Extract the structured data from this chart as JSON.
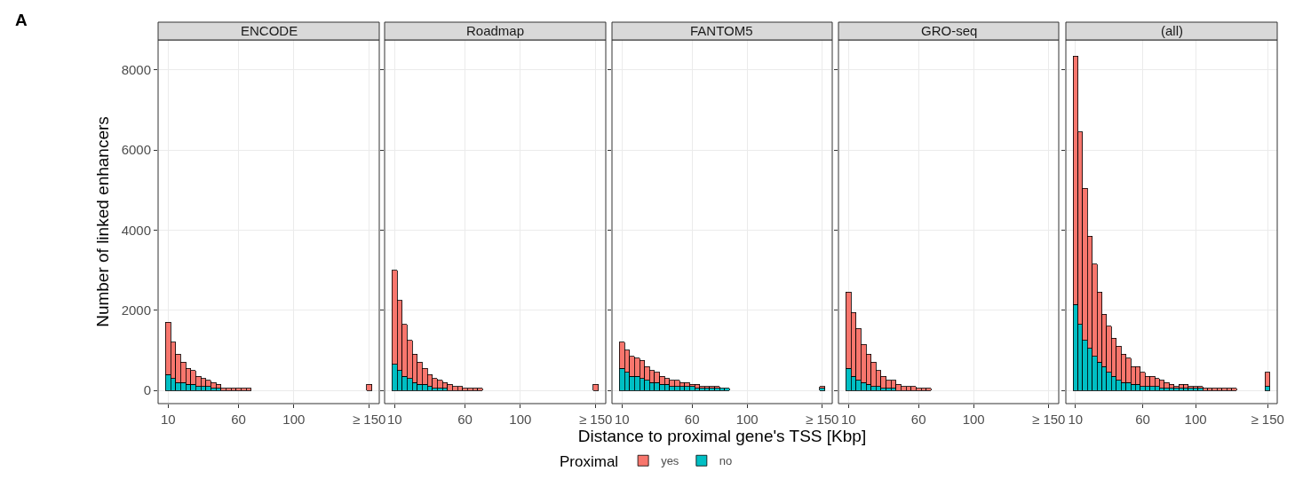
{
  "chart_data": [
    {
      "type": "bar",
      "title": "ENCODE",
      "ylabel": "Number of linked enhancers",
      "annotations": [
        "A"
      ],
      "legend": "bottom",
      "legend_title": "Proximal",
      "stacked": true,
      "grid": true,
      "categories": [
        "10",
        null,
        null,
        null,
        null,
        null,
        null,
        null,
        null,
        null,
        null,
        null,
        null,
        null,
        "60",
        null,
        null,
        null,
        null,
        null,
        null,
        null,
        null,
        null,
        null,
        "100",
        null,
        null,
        null,
        null,
        null,
        null,
        null,
        null,
        null,
        null,
        null,
        null,
        null,
        null,
        "≥ 150"
      ],
      "series": [
        {
          "name": "no",
          "color": "#00bfc4",
          "values": [
            400,
            300,
            200,
            200,
            150,
            150,
            100,
            100,
            100,
            50,
            50,
            null,
            null,
            null,
            null,
            null,
            null,
            null,
            null,
            null,
            null,
            null,
            null,
            null,
            null,
            null,
            null,
            null,
            null,
            null,
            null,
            null,
            null,
            null,
            null,
            null,
            null,
            null,
            null,
            null,
            null
          ]
        },
        {
          "name": "yes",
          "color": "#f8766d",
          "values": [
            1300,
            900,
            700,
            500,
            400,
            350,
            250,
            200,
            150,
            150,
            100,
            50,
            50,
            50,
            50,
            50,
            50,
            null,
            null,
            null,
            null,
            null,
            null,
            null,
            null,
            null,
            null,
            null,
            null,
            null,
            null,
            null,
            null,
            null,
            null,
            null,
            null,
            null,
            null,
            null,
            150
          ]
        }
      ],
      "ylim": [
        -330,
        8750
      ],
      "yticks": [
        0,
        2000,
        4000,
        6000,
        8000
      ]
    },
    {
      "type": "bar",
      "title": "Roadmap",
      "stacked": true,
      "grid": true,
      "tick_labels": "x",
      "categories": [
        "10",
        null,
        null,
        null,
        null,
        null,
        null,
        null,
        null,
        null,
        null,
        null,
        null,
        null,
        "60",
        null,
        null,
        null,
        null,
        null,
        null,
        null,
        null,
        null,
        null,
        "100",
        null,
        null,
        null,
        null,
        null,
        null,
        null,
        null,
        null,
        null,
        null,
        null,
        null,
        null,
        "≥ 150"
      ],
      "series": [
        {
          "color": "#00bfc4",
          "values": [
            650,
            500,
            350,
            300,
            200,
            150,
            150,
            100,
            50,
            50,
            50,
            null,
            null,
            null,
            null,
            null,
            null,
            null,
            null,
            null,
            null,
            null,
            null,
            null,
            null,
            null,
            null,
            null,
            null,
            null,
            null,
            null,
            null,
            null,
            null,
            null,
            null,
            null,
            null,
            null,
            null
          ]
        },
        {
          "color": "#f8766d",
          "values": [
            2350,
            1750,
            1300,
            950,
            700,
            550,
            400,
            300,
            250,
            200,
            150,
            150,
            100,
            100,
            50,
            50,
            50,
            50,
            null,
            null,
            null,
            null,
            null,
            null,
            null,
            null,
            null,
            null,
            null,
            null,
            null,
            null,
            null,
            null,
            null,
            null,
            null,
            null,
            null,
            null,
            150
          ]
        }
      ],
      "ylim": [
        -330,
        8750
      ],
      "yticks": [
        0,
        2000,
        4000,
        6000,
        8000
      ]
    },
    {
      "type": "bar",
      "title": "FANTOM5",
      "xlabel": "Distance to proximal gene's TSS [Kbp]",
      "stacked": true,
      "grid": true,
      "tick_labels": "x",
      "categories": [
        "10",
        null,
        null,
        null,
        null,
        null,
        null,
        null,
        null,
        null,
        null,
        null,
        null,
        null,
        "60",
        null,
        null,
        null,
        null,
        null,
        null,
        null,
        null,
        null,
        null,
        "100",
        null,
        null,
        null,
        null,
        null,
        null,
        null,
        null,
        null,
        null,
        null,
        null,
        null,
        null,
        "≥ 150"
      ],
      "series": [
        {
          "color": "#00bfc4",
          "values": [
            550,
            450,
            350,
            350,
            300,
            250,
            200,
            200,
            150,
            150,
            100,
            100,
            100,
            100,
            100,
            50,
            50,
            50,
            50,
            50,
            50,
            50,
            null,
            null,
            null,
            null,
            null,
            null,
            null,
            null,
            null,
            null,
            null,
            null,
            null,
            null,
            null,
            null,
            null,
            null,
            50
          ]
        },
        {
          "color": "#f8766d",
          "values": [
            650,
            550,
            500,
            450,
            450,
            350,
            300,
            250,
            200,
            150,
            150,
            150,
            100,
            100,
            50,
            100,
            50,
            50,
            50,
            50,
            null,
            null,
            null,
            null,
            null,
            null,
            null,
            null,
            null,
            null,
            null,
            null,
            null,
            null,
            null,
            null,
            null,
            null,
            null,
            null,
            50
          ]
        }
      ],
      "ylim": [
        -330,
        8750
      ],
      "yticks": [
        0,
        2000,
        4000,
        6000,
        8000
      ]
    },
    {
      "type": "bar",
      "title": "GRO-seq",
      "stacked": true,
      "grid": true,
      "tick_labels": "x",
      "categories": [
        "10",
        null,
        null,
        null,
        null,
        null,
        null,
        null,
        null,
        null,
        null,
        null,
        null,
        null,
        "60",
        null,
        null,
        null,
        null,
        null,
        null,
        null,
        null,
        null,
        null,
        "100",
        null,
        null,
        null,
        null,
        null,
        null,
        null,
        null,
        null,
        null,
        null,
        null,
        null,
        null,
        "≥ 150"
      ],
      "series": [
        {
          "color": "#00bfc4",
          "values": [
            550,
            350,
            250,
            200,
            150,
            100,
            100,
            50,
            50,
            50,
            null,
            null,
            null,
            null,
            null,
            null,
            null,
            null,
            null,
            null,
            null,
            null,
            null,
            null,
            null,
            null,
            null,
            null,
            null,
            null,
            null,
            null,
            null,
            null,
            null,
            null,
            null,
            null,
            null,
            null,
            null
          ]
        },
        {
          "color": "#f8766d",
          "values": [
            1900,
            1600,
            1300,
            950,
            750,
            600,
            400,
            300,
            200,
            200,
            150,
            100,
            100,
            100,
            50,
            50,
            50,
            null,
            null,
            null,
            null,
            null,
            null,
            null,
            null,
            null,
            null,
            null,
            null,
            null,
            null,
            null,
            null,
            null,
            null,
            null,
            null,
            null,
            null,
            null,
            null
          ]
        }
      ],
      "ylim": [
        -330,
        8750
      ],
      "yticks": [
        0,
        2000,
        4000,
        6000,
        8000
      ]
    },
    {
      "type": "bar",
      "title": "(all)",
      "stacked": true,
      "grid": true,
      "tick_labels": "x",
      "categories": [
        "10",
        null,
        null,
        null,
        null,
        null,
        null,
        null,
        null,
        null,
        null,
        null,
        null,
        null,
        "60",
        null,
        null,
        null,
        null,
        null,
        null,
        null,
        null,
        null,
        null,
        "100",
        null,
        null,
        null,
        null,
        null,
        null,
        null,
        null,
        null,
        null,
        null,
        null,
        null,
        null,
        "≥ 150"
      ],
      "series": [
        {
          "color": "#00bfc4",
          "values": [
            2150,
            1650,
            1250,
            1050,
            850,
            700,
            600,
            450,
            350,
            250,
            200,
            200,
            150,
            150,
            100,
            100,
            100,
            100,
            50,
            50,
            50,
            50,
            50,
            50,
            50,
            50,
            50,
            null,
            null,
            null,
            null,
            null,
            null,
            null,
            null,
            null,
            null,
            null,
            null,
            null,
            100
          ]
        },
        {
          "color": "#f8766d",
          "values": [
            6200,
            4800,
            3800,
            2800,
            2300,
            1750,
            1300,
            1150,
            950,
            850,
            700,
            600,
            450,
            450,
            350,
            250,
            250,
            200,
            200,
            150,
            100,
            50,
            100,
            100,
            50,
            50,
            50,
            50,
            50,
            50,
            50,
            50,
            50,
            50,
            null,
            null,
            null,
            null,
            null,
            null,
            350
          ]
        }
      ],
      "ylim": [
        -330,
        8750
      ],
      "yticks": [
        0,
        2000,
        4000,
        6000,
        8000
      ]
    }
  ]
}
